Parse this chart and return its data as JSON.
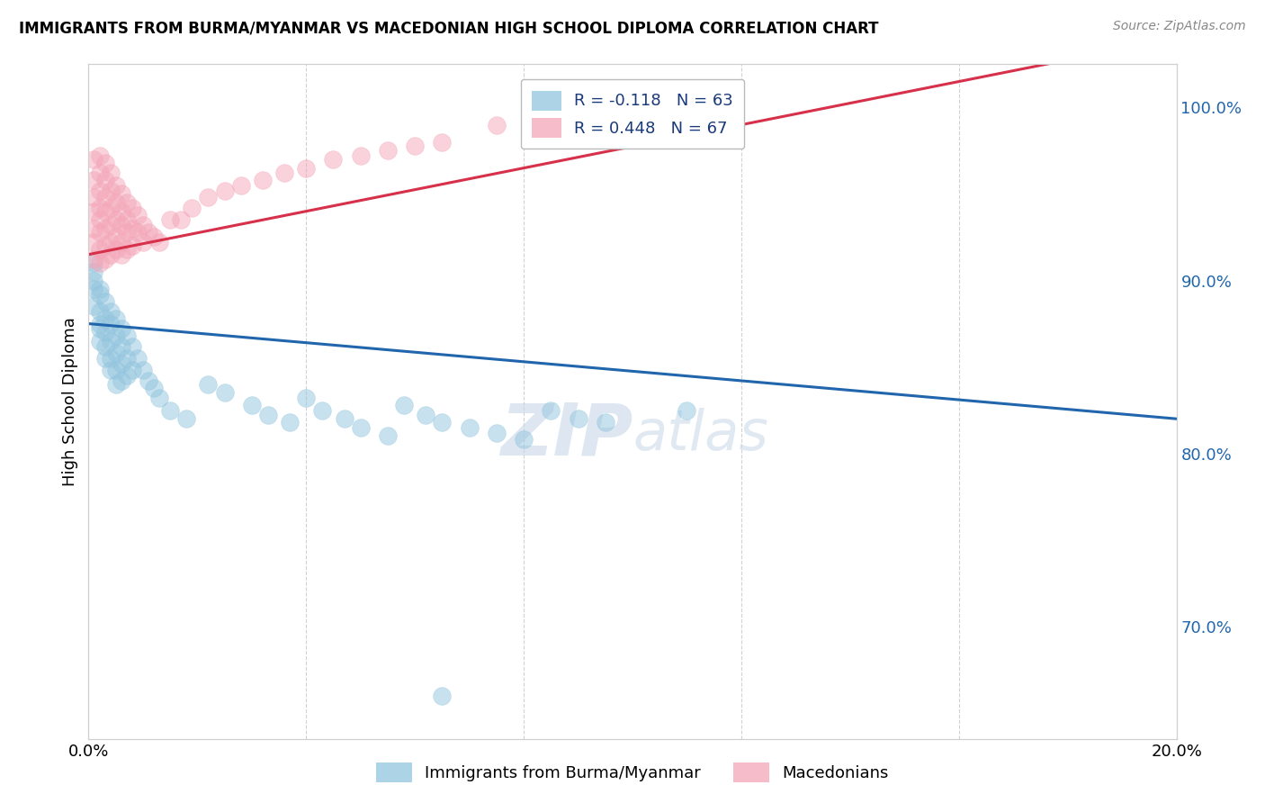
{
  "title": "IMMIGRANTS FROM BURMA/MYANMAR VS MACEDONIAN HIGH SCHOOL DIPLOMA CORRELATION CHART",
  "source": "Source: ZipAtlas.com",
  "ylabel": "High School Diploma",
  "blue_label": "Immigrants from Burma/Myanmar",
  "pink_label": "Macedonians",
  "blue_color": "#92c5de",
  "pink_color": "#f4a6b8",
  "blue_line_color": "#2166ac",
  "pink_line_color": "#d6304a",
  "blue_R": -0.118,
  "blue_N": 63,
  "pink_R": 0.448,
  "pink_N": 67,
  "watermark_zip": "ZIP",
  "watermark_atlas": "atlas",
  "xlim": [
    0.0,
    0.2
  ],
  "ylim": [
    0.635,
    1.025
  ],
  "yticks": [
    0.7,
    0.8,
    0.9,
    1.0
  ],
  "ytick_labels": [
    "70.0%",
    "80.0%",
    "90.0%",
    "100.0%"
  ],
  "xtick_left": "0.0%",
  "xtick_right": "20.0%",
  "background_color": "#ffffff",
  "grid_color": "#cccccc",
  "blue_points_x": [
    0.001,
    0.001,
    0.001,
    0.001,
    0.001,
    0.002,
    0.002,
    0.002,
    0.002,
    0.002,
    0.002,
    0.003,
    0.003,
    0.003,
    0.003,
    0.003,
    0.004,
    0.004,
    0.004,
    0.004,
    0.004,
    0.005,
    0.005,
    0.005,
    0.005,
    0.005,
    0.006,
    0.006,
    0.006,
    0.006,
    0.007,
    0.007,
    0.007,
    0.008,
    0.008,
    0.009,
    0.01,
    0.011,
    0.012,
    0.013,
    0.015,
    0.018,
    0.022,
    0.025,
    0.03,
    0.033,
    0.037,
    0.04,
    0.043,
    0.047,
    0.05,
    0.055,
    0.058,
    0.062,
    0.065,
    0.07,
    0.075,
    0.08,
    0.085,
    0.09,
    0.095,
    0.11,
    0.065
  ],
  "blue_points_y": [
    0.9,
    0.895,
    0.905,
    0.91,
    0.885,
    0.895,
    0.882,
    0.875,
    0.892,
    0.872,
    0.865,
    0.888,
    0.878,
    0.87,
    0.862,
    0.855,
    0.882,
    0.875,
    0.865,
    0.855,
    0.848,
    0.878,
    0.868,
    0.858,
    0.848,
    0.84,
    0.872,
    0.862,
    0.852,
    0.842,
    0.868,
    0.855,
    0.845,
    0.862,
    0.848,
    0.855,
    0.848,
    0.842,
    0.838,
    0.832,
    0.825,
    0.82,
    0.84,
    0.835,
    0.828,
    0.822,
    0.818,
    0.832,
    0.825,
    0.82,
    0.815,
    0.81,
    0.828,
    0.822,
    0.818,
    0.815,
    0.812,
    0.808,
    0.825,
    0.82,
    0.818,
    0.825,
    0.66
  ],
  "pink_points_x": [
    0.001,
    0.001,
    0.001,
    0.001,
    0.001,
    0.001,
    0.001,
    0.002,
    0.002,
    0.002,
    0.002,
    0.002,
    0.002,
    0.002,
    0.002,
    0.003,
    0.003,
    0.003,
    0.003,
    0.003,
    0.003,
    0.003,
    0.004,
    0.004,
    0.004,
    0.004,
    0.004,
    0.004,
    0.005,
    0.005,
    0.005,
    0.005,
    0.005,
    0.006,
    0.006,
    0.006,
    0.006,
    0.006,
    0.007,
    0.007,
    0.007,
    0.007,
    0.008,
    0.008,
    0.008,
    0.009,
    0.009,
    0.01,
    0.01,
    0.011,
    0.012,
    0.013,
    0.015,
    0.017,
    0.019,
    0.022,
    0.025,
    0.028,
    0.032,
    0.036,
    0.04,
    0.045,
    0.05,
    0.055,
    0.06,
    0.065,
    0.075
  ],
  "pink_points_y": [
    0.97,
    0.958,
    0.948,
    0.94,
    0.93,
    0.922,
    0.912,
    0.972,
    0.962,
    0.952,
    0.942,
    0.935,
    0.928,
    0.918,
    0.91,
    0.968,
    0.958,
    0.948,
    0.94,
    0.93,
    0.92,
    0.912,
    0.962,
    0.952,
    0.942,
    0.932,
    0.922,
    0.915,
    0.955,
    0.945,
    0.935,
    0.925,
    0.918,
    0.95,
    0.94,
    0.932,
    0.922,
    0.915,
    0.945,
    0.935,
    0.928,
    0.918,
    0.942,
    0.93,
    0.92,
    0.938,
    0.928,
    0.932,
    0.922,
    0.928,
    0.925,
    0.922,
    0.935,
    0.935,
    0.942,
    0.948,
    0.952,
    0.955,
    0.958,
    0.962,
    0.965,
    0.97,
    0.972,
    0.975,
    0.978,
    0.98,
    0.99
  ]
}
